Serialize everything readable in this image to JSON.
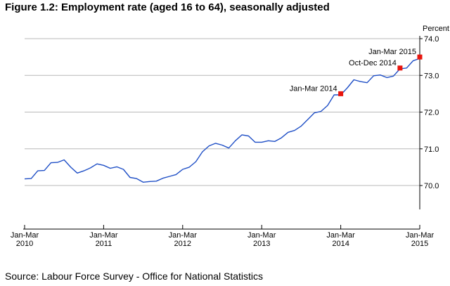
{
  "figure": {
    "title": "Figure 1.2: Employment rate (aged 16 to 64), seasonally adjusted",
    "source": "Source: Labour Force Survey - Office for National Statistics"
  },
  "chart_data": {
    "type": "line",
    "ylabel": "Percent",
    "ylim": [
      69.35,
      74.0
    ],
    "y_ticks": [
      {
        "value": 70.0,
        "label": "70.0"
      },
      {
        "value": 71.0,
        "label": "71.0"
      },
      {
        "value": 72.0,
        "label": "72.0"
      },
      {
        "value": 73.0,
        "label": "73.0"
      },
      {
        "value": 74.0,
        "label": "74.0"
      }
    ],
    "x_range": [
      0,
      60
    ],
    "x_ticks": [
      {
        "index": 0,
        "line1": "Jan-Mar",
        "line2": "2010"
      },
      {
        "index": 12,
        "line1": "Jan-Mar",
        "line2": "2011"
      },
      {
        "index": 24,
        "line1": "Jan-Mar",
        "line2": "2012"
      },
      {
        "index": 36,
        "line1": "Jan-Mar",
        "line2": "2013"
      },
      {
        "index": 48,
        "line1": "Jan-Mar",
        "line2": "2014"
      },
      {
        "index": 60,
        "line1": "Jan-Mar",
        "line2": "2015"
      }
    ],
    "grid": true,
    "line_color": "#1f4fc6",
    "highlight_color": "#e8150d",
    "series": [
      {
        "x": [
          0,
          1,
          2,
          3,
          4,
          5,
          6,
          7,
          8,
          9,
          10,
          11,
          12,
          13,
          14,
          15,
          16,
          17,
          18,
          19,
          20,
          21,
          22,
          23,
          24,
          25,
          26,
          27,
          28,
          29,
          30,
          31,
          32,
          33,
          34,
          35,
          36,
          37,
          38,
          39,
          40,
          41,
          42,
          43,
          44,
          45,
          46,
          47,
          48,
          49,
          50,
          51,
          52,
          53,
          54,
          55,
          56,
          57,
          58,
          59,
          60
        ],
        "y": [
          70.18,
          70.19,
          70.4,
          70.41,
          70.62,
          70.63,
          70.7,
          70.5,
          70.34,
          70.4,
          70.48,
          70.59,
          70.55,
          70.47,
          70.51,
          70.44,
          70.22,
          70.19,
          70.09,
          70.11,
          70.12,
          70.2,
          70.25,
          70.3,
          70.44,
          70.5,
          70.65,
          70.92,
          71.08,
          71.15,
          71.1,
          71.02,
          71.22,
          71.38,
          71.35,
          71.18,
          71.18,
          71.22,
          71.2,
          71.3,
          71.45,
          71.5,
          71.62,
          71.8,
          71.98,
          72.02,
          72.18,
          72.47,
          72.47,
          72.66,
          72.88,
          72.83,
          72.8,
          72.99,
          73.01,
          72.94,
          72.98,
          73.18,
          73.2,
          73.4,
          73.46
        ]
      }
    ],
    "highlights": [
      {
        "x": 48,
        "y": 72.5,
        "label": "Jan-Mar 2014"
      },
      {
        "x": 57,
        "y": 73.2,
        "label": "Oct-Dec 2014"
      },
      {
        "x": 60,
        "y": 73.5,
        "label": "Jan-Mar 2015"
      }
    ]
  }
}
